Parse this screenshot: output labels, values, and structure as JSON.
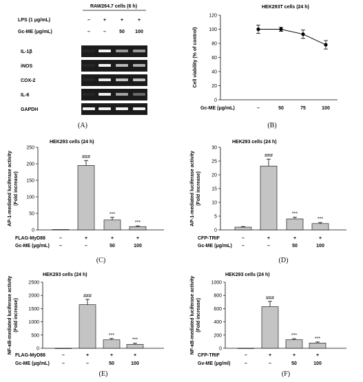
{
  "panel_letters": [
    "(A)",
    "(B)",
    "(C)",
    "(D)",
    "(E)",
    "(F)"
  ],
  "gel": {
    "title": "RAW264.7 cells (6 h)",
    "treat_rows": [
      {
        "label": "LPS (1 μg/mL)",
        "values": [
          "–",
          "+",
          "+",
          "+"
        ]
      },
      {
        "label": "Gc-ME (μg/mL)",
        "values": [
          "–",
          "–",
          "50",
          "100"
        ]
      }
    ],
    "genes": [
      "IL-1β",
      "iNOS",
      "COX-2",
      "IL-6",
      "GAPDH"
    ]
  },
  "chart_data": [
    {
      "panel": "B",
      "type": "line",
      "title": "HEK293T cells (24 h)",
      "ylabel": "Cell viability (% of control)",
      "ylim": [
        0,
        120
      ],
      "yticks": [
        0,
        20,
        40,
        60,
        80,
        100,
        120
      ],
      "categories": [
        "–",
        "50",
        "75",
        "100"
      ],
      "row_labels": [
        "Gc-ME (μg/mL)"
      ],
      "values": [
        100,
        100,
        93,
        78
      ],
      "errors": [
        6,
        3,
        6,
        6
      ],
      "annotations": [
        "",
        "",
        "",
        ""
      ]
    },
    {
      "panel": "C",
      "type": "bar",
      "title": "HEK293 cells (24 h)",
      "ylabel": "AP-1-mediated luciferase activity\n(Fold increase)",
      "ylim": [
        0,
        250
      ],
      "yticks": [
        0,
        50,
        100,
        150,
        200,
        250
      ],
      "values": [
        1,
        195,
        30,
        10
      ],
      "errors": [
        0,
        15,
        8,
        2
      ],
      "annotations": [
        "",
        "###",
        "***",
        "***"
      ],
      "row_labels": [
        "FLAG-MyD88",
        "Gc-ME (μg/mL)"
      ],
      "rows": [
        [
          "–",
          "+",
          "+",
          "+"
        ],
        [
          "–",
          "–",
          "50",
          "100"
        ]
      ]
    },
    {
      "panel": "D",
      "type": "bar",
      "title": "HEK293 cells (24 h)",
      "ylabel": "AP-1-mediated luciferase activity\n(Fold increase)",
      "ylim": [
        0,
        30
      ],
      "yticks": [
        0,
        5,
        10,
        15,
        20,
        25,
        30
      ],
      "values": [
        1,
        23.2,
        4,
        2.3
      ],
      "errors": [
        0.2,
        2.5,
        0.6,
        0.4
      ],
      "annotations": [
        "",
        "###",
        "***",
        "***"
      ],
      "row_labels": [
        "CFP-TRIF",
        "Gc-ME (μg/mL)"
      ],
      "rows": [
        [
          "–",
          "+",
          "+",
          "+"
        ],
        [
          "–",
          "–",
          "50",
          "100"
        ]
      ]
    },
    {
      "panel": "E",
      "type": "bar",
      "title": "HEK293 cells (24 h)",
      "ylabel": "NF-κB-mediated luciferase activity\n(Fold increase)",
      "ylim": [
        0,
        2500
      ],
      "yticks": [
        0,
        500,
        1000,
        1500,
        2000,
        2500
      ],
      "values": [
        1,
        1650,
        320,
        150
      ],
      "errors": [
        0,
        200,
        50,
        40
      ],
      "annotations": [
        "",
        "###",
        "***",
        "***"
      ],
      "row_labels": [
        "FLAG-MyD88",
        "Gc-ME (μg/mL)"
      ],
      "rows": [
        [
          "–",
          "+",
          "+",
          "+"
        ],
        [
          "–",
          "–",
          "50",
          "100"
        ]
      ]
    },
    {
      "panel": "F",
      "type": "bar",
      "title": "HEK293 cells (24 h)",
      "ylabel": "NF-κB-mediated luciferase activity\n(Fold increase)",
      "ylim": [
        0,
        1000
      ],
      "yticks": [
        0,
        200,
        400,
        600,
        800,
        1000
      ],
      "values": [
        1,
        630,
        130,
        80
      ],
      "errors": [
        0,
        80,
        15,
        15
      ],
      "annotations": [
        "",
        "###",
        "***",
        "***"
      ],
      "row_labels": [
        "CFP-TRIF",
        "Gv-ME (μg/ml)"
      ],
      "rows": [
        [
          "–",
          "+",
          "+",
          "+"
        ],
        [
          "–",
          "–",
          "50",
          "100"
        ]
      ]
    }
  ]
}
